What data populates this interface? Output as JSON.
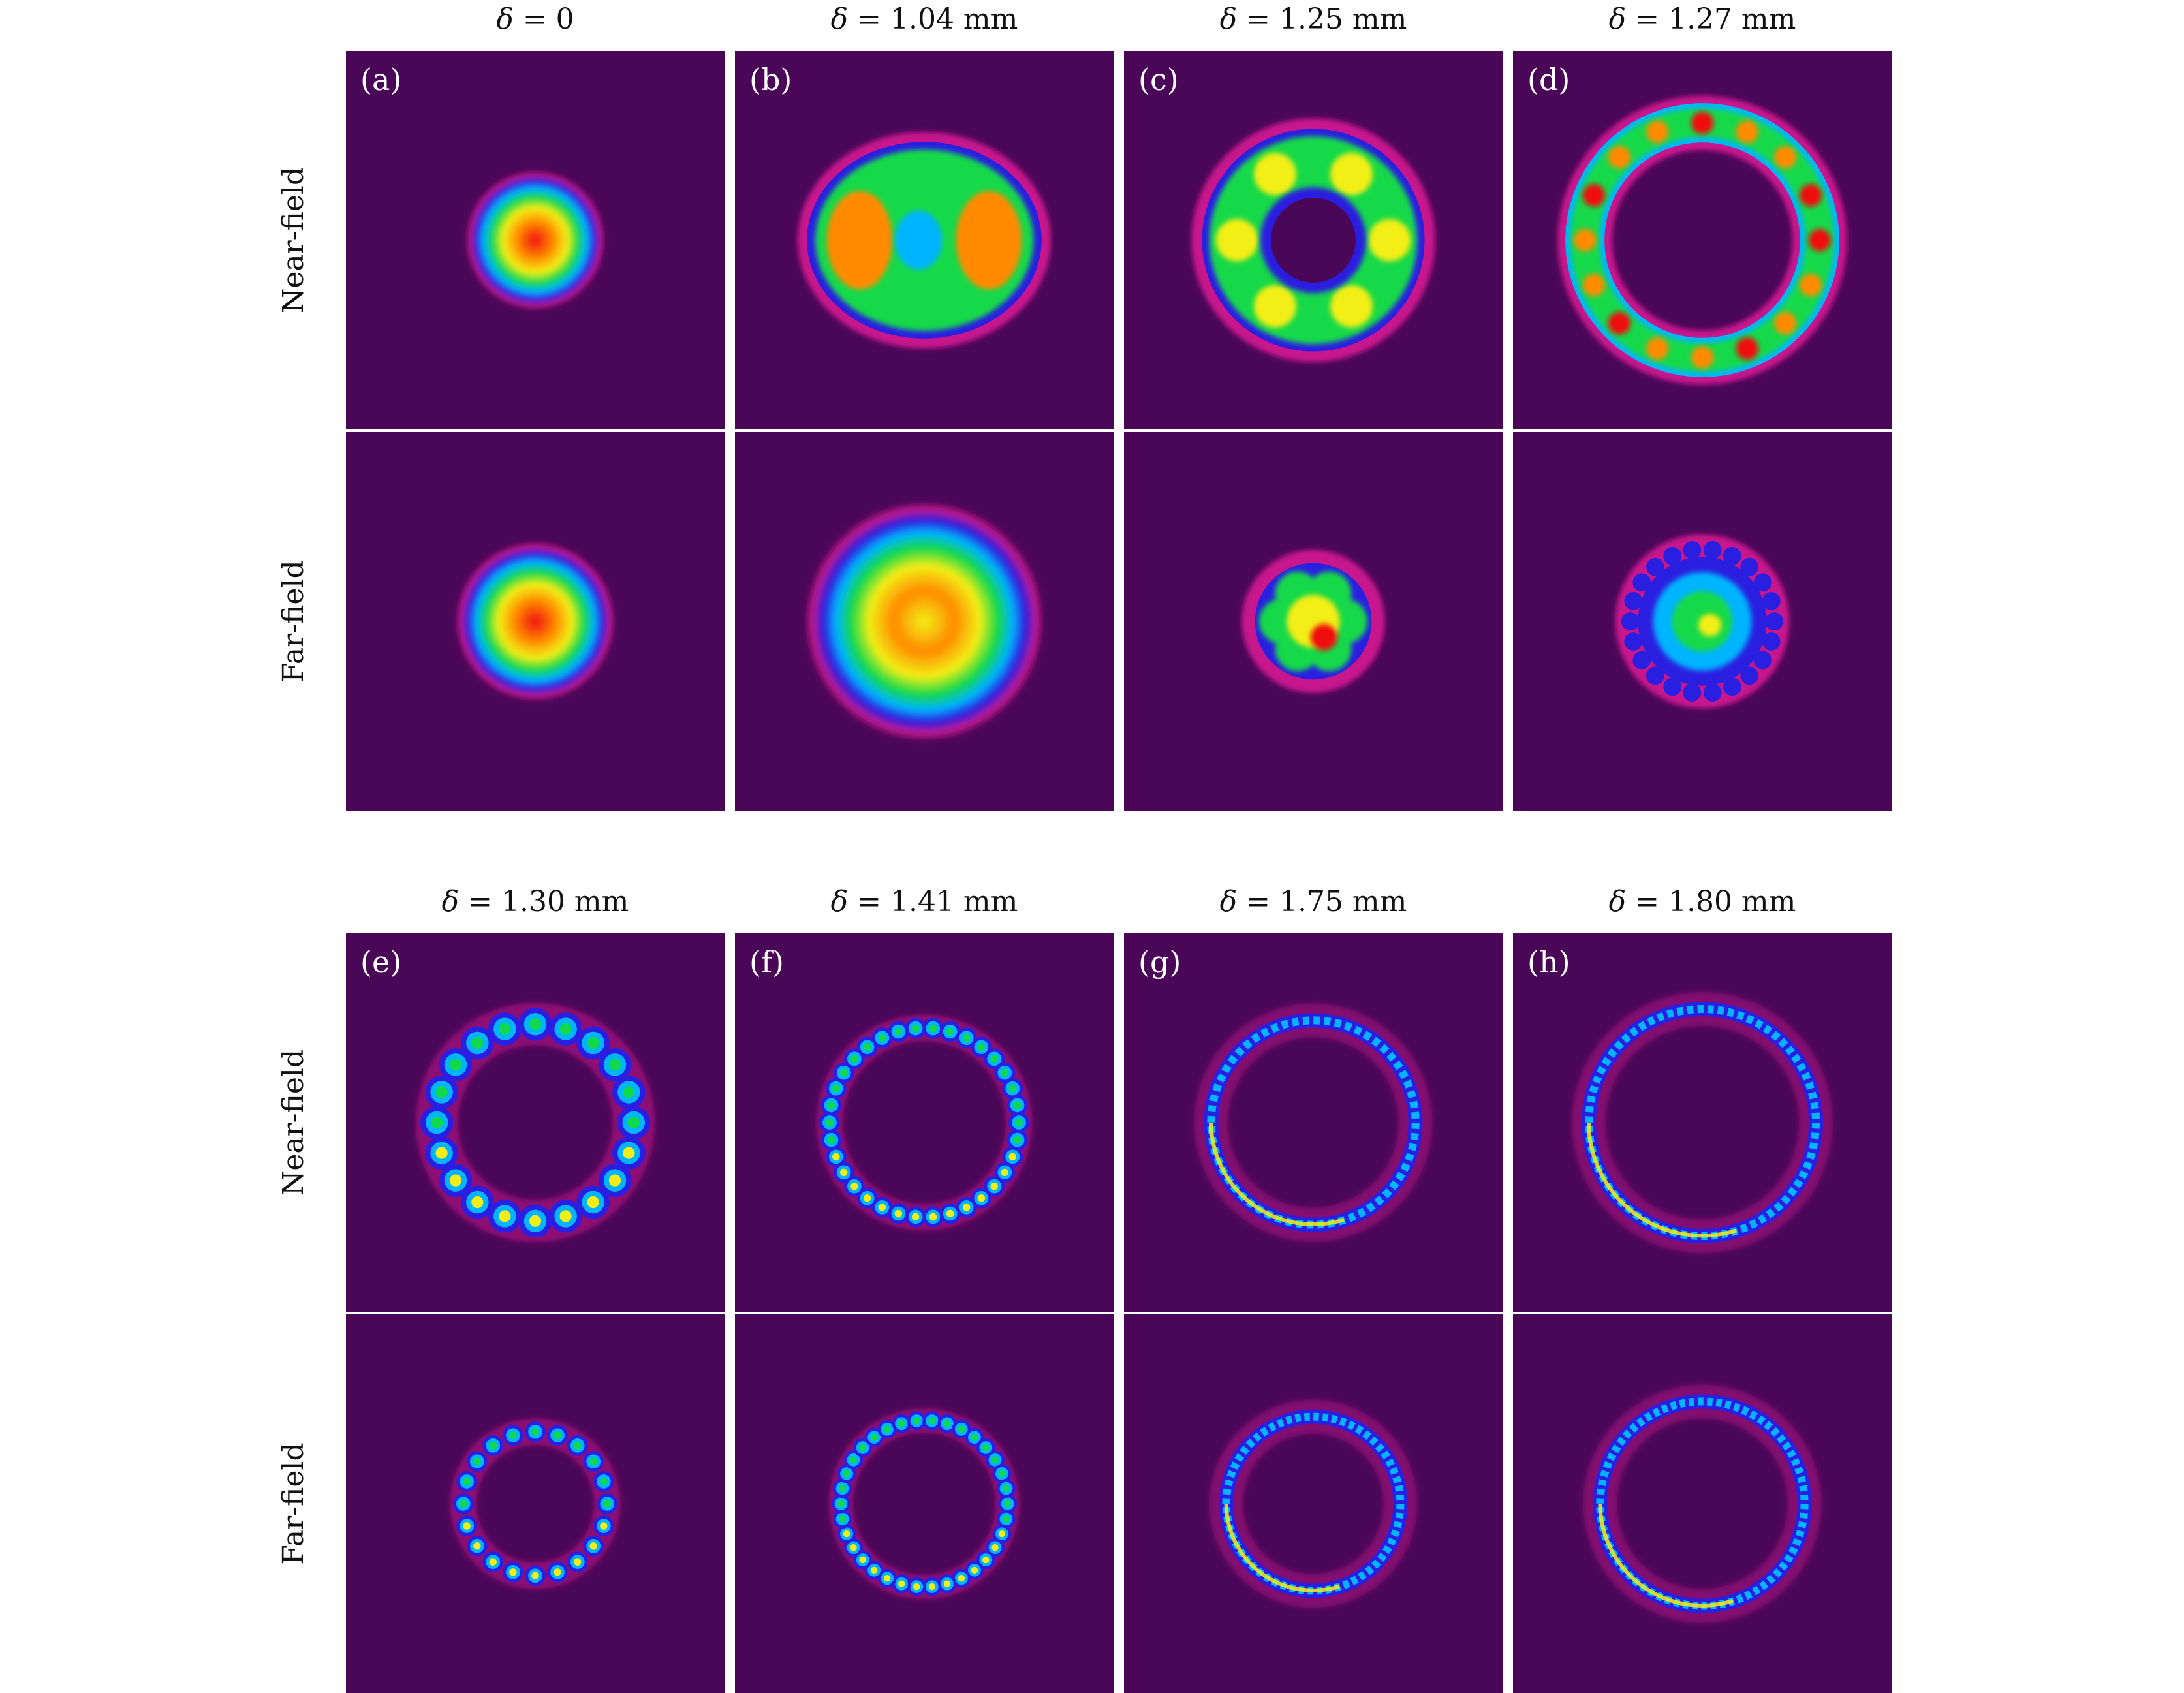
{
  "colors": {
    "background": "#4a0757",
    "colormap": [
      "#4a0757",
      "#c8188c",
      "#2a1fe0",
      "#00b4ff",
      "#12d94a",
      "#f3ee15",
      "#ff8a00",
      "#f01010"
    ]
  },
  "row_labels": [
    "Near-field",
    "Far-field"
  ],
  "groups": [
    {
      "columns": [
        {
          "delta_symbol": "δ",
          "delta_text": " = 0"
        },
        {
          "delta_symbol": "δ",
          "delta_text": " = 1.04 mm"
        },
        {
          "delta_symbol": "δ",
          "delta_text": " = 1.25 mm"
        },
        {
          "delta_symbol": "δ",
          "delta_text": " = 1.27 mm"
        }
      ],
      "letters": [
        "(a)",
        "(b)",
        "(c)",
        "(d)"
      ]
    },
    {
      "columns": [
        {
          "delta_symbol": "δ",
          "delta_text": " = 1.30 mm"
        },
        {
          "delta_symbol": "δ",
          "delta_text": " = 1.41 mm"
        },
        {
          "delta_symbol": "δ",
          "delta_text": " = 1.75 mm"
        },
        {
          "delta_symbol": "δ",
          "delta_text": " = 1.80 mm"
        }
      ],
      "letters": [
        "(e)",
        "(f)",
        "(g)",
        "(h)"
      ]
    }
  ],
  "patterns": [
    [
      {
        "kind": "spot",
        "r": 0.14,
        "peak": "#f01010"
      },
      {
        "kind": "doughnut",
        "rx": 0.31,
        "ry": 0.26,
        "lobes": 2
      },
      {
        "kind": "square-ring",
        "r": 0.28,
        "lobes": 6
      },
      {
        "kind": "ring",
        "r": 0.31,
        "width": 0.09,
        "lobes": 16
      }
    ],
    [
      {
        "kind": "spot",
        "r": 0.16,
        "peak": "#f01010"
      },
      {
        "kind": "spot",
        "r": 0.24,
        "peak": "#f3ee15"
      },
      {
        "kind": "blob",
        "r": 0.14,
        "lobes": 6
      },
      {
        "kind": "star",
        "r": 0.2,
        "lobes": 22
      }
    ],
    [
      {
        "kind": "bead-ring",
        "r": 0.26,
        "lobes": 20,
        "bead": 0.035
      },
      {
        "kind": "bead-ring",
        "r": 0.25,
        "lobes": 34,
        "bead": 0.022
      },
      {
        "kind": "thin-ring",
        "r": 0.27,
        "lobes": 60
      },
      {
        "kind": "thin-ring",
        "r": 0.3,
        "lobes": 70
      }
    ],
    [
      {
        "kind": "bead-ring",
        "r": 0.19,
        "lobes": 20,
        "bead": 0.022
      },
      {
        "kind": "bead-ring",
        "r": 0.22,
        "lobes": 34,
        "bead": 0.02
      },
      {
        "kind": "thin-ring",
        "r": 0.23,
        "lobes": 60
      },
      {
        "kind": "thin-ring",
        "r": 0.27,
        "lobes": 70
      }
    ]
  ]
}
